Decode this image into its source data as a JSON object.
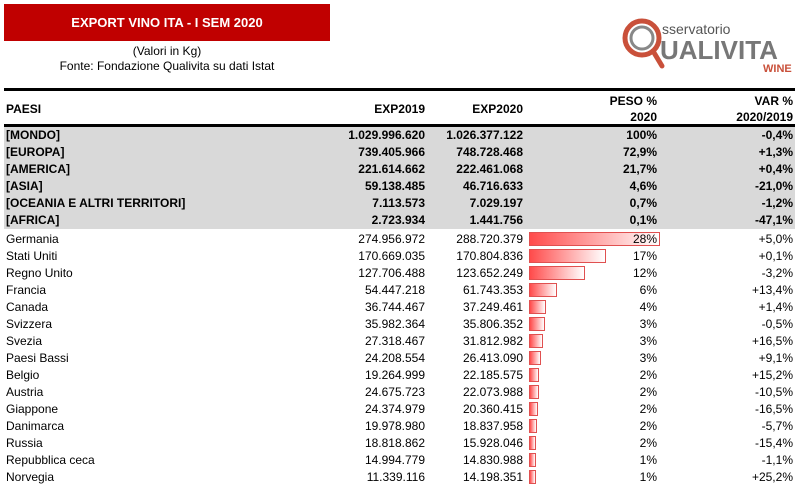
{
  "title": "EXPORT VINO ITA - I SEM 2020",
  "subtitle": "(Valori in Kg)",
  "source": "Fonte: Fondazione Qualivita su dati Istat",
  "logo": {
    "line1": "sservatorio",
    "line2": "UALIVITA",
    "line3": "WINE"
  },
  "headers": {
    "paesi": "PAESI",
    "exp2019": "EXP2019",
    "exp2020": "EXP2020",
    "peso1": "PESO %",
    "peso2": "2020",
    "var1": "VAR %",
    "var2": "2020/2019"
  },
  "colors": {
    "title_bg": "#c00000",
    "bar": "#ff4b4b",
    "gray": "#d9d9d9"
  },
  "aggregates": [
    {
      "name": "[MONDO]",
      "exp2019": "1.029.996.620",
      "exp2020": "1.026.377.122",
      "peso": "100%",
      "var": "-0,4%"
    },
    {
      "name": "[EUROPA]",
      "exp2019": "739.405.966",
      "exp2020": "748.728.468",
      "peso": "72,9%",
      "var": "+1,3%"
    },
    {
      "name": "[AMERICA]",
      "exp2019": "221.614.662",
      "exp2020": "222.461.068",
      "peso": "21,7%",
      "var": "+0,4%"
    },
    {
      "name": "[ASIA]",
      "exp2019": "59.138.485",
      "exp2020": "46.716.633",
      "peso": "4,6%",
      "var": "-21,0%"
    },
    {
      "name": "[OCEANIA E ALTRI TERRITORI]",
      "exp2019": "7.113.573",
      "exp2020": "7.029.197",
      "peso": "0,7%",
      "var": "-1,2%"
    },
    {
      "name": "[AFRICA]",
      "exp2019": "2.723.934",
      "exp2020": "1.441.756",
      "peso": "0,1%",
      "var": "-47,1%"
    }
  ],
  "countries": [
    {
      "name": "Germania",
      "exp2019": "274.956.972",
      "exp2020": "288.720.379",
      "peso": "28%",
      "peso_value": 28.1,
      "var": "+5,0%"
    },
    {
      "name": "Stati Uniti",
      "exp2019": "170.669.035",
      "exp2020": "170.804.836",
      "peso": "17%",
      "peso_value": 16.6,
      "var": "+0,1%"
    },
    {
      "name": "Regno Unito",
      "exp2019": "127.706.488",
      "exp2020": "123.652.249",
      "peso": "12%",
      "peso_value": 12.0,
      "var": "-3,2%"
    },
    {
      "name": "Francia",
      "exp2019": "54.447.218",
      "exp2020": "61.743.353",
      "peso": "6%",
      "peso_value": 6.0,
      "var": "+13,4%"
    },
    {
      "name": "Canada",
      "exp2019": "36.744.467",
      "exp2020": "37.249.461",
      "peso": "4%",
      "peso_value": 3.6,
      "var": "+1,4%"
    },
    {
      "name": "Svizzera",
      "exp2019": "35.982.364",
      "exp2020": "35.806.352",
      "peso": "3%",
      "peso_value": 3.5,
      "var": "-0,5%"
    },
    {
      "name": "Svezia",
      "exp2019": "27.318.467",
      "exp2020": "31.812.982",
      "peso": "3%",
      "peso_value": 3.1,
      "var": "+16,5%"
    },
    {
      "name": "Paesi Bassi",
      "exp2019": "24.208.554",
      "exp2020": "26.413.090",
      "peso": "3%",
      "peso_value": 2.6,
      "var": "+9,1%"
    },
    {
      "name": "Belgio",
      "exp2019": "19.264.999",
      "exp2020": "22.185.575",
      "peso": "2%",
      "peso_value": 2.2,
      "var": "+15,2%"
    },
    {
      "name": "Austria",
      "exp2019": "24.675.723",
      "exp2020": "22.073.988",
      "peso": "2%",
      "peso_value": 2.2,
      "var": "-10,5%"
    },
    {
      "name": "Giappone",
      "exp2019": "24.374.979",
      "exp2020": "20.360.415",
      "peso": "2%",
      "peso_value": 2.0,
      "var": "-16,5%"
    },
    {
      "name": "Danimarca",
      "exp2019": "19.978.980",
      "exp2020": "18.837.958",
      "peso": "2%",
      "peso_value": 1.8,
      "var": "-5,7%"
    },
    {
      "name": "Russia",
      "exp2019": "18.818.862",
      "exp2020": "15.928.046",
      "peso": "2%",
      "peso_value": 1.6,
      "var": "-15,4%"
    },
    {
      "name": "Repubblica ceca",
      "exp2019": "14.994.779",
      "exp2020": "14.830.988",
      "peso": "1%",
      "peso_value": 1.4,
      "var": "-1,1%"
    },
    {
      "name": "Norvegia",
      "exp2019": "11.339.116",
      "exp2020": "14.198.351",
      "peso": "1%",
      "peso_value": 1.4,
      "var": "+25,2%"
    }
  ]
}
